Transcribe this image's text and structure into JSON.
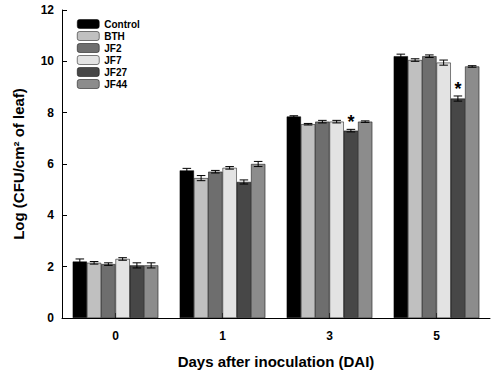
{
  "chart_data": {
    "type": "bar",
    "x_label": "Days after inoculation (DAI)",
    "y_label": "Log (CFU/cm² of leaf)",
    "categories": [
      "0",
      "1",
      "3",
      "5"
    ],
    "ylim": [
      0,
      12
    ],
    "yticks": [
      0,
      2,
      4,
      6,
      8,
      10,
      12
    ],
    "legend": "upper left",
    "series": [
      {
        "name": "Control",
        "color": "#000000",
        "values": [
          2.2,
          5.75,
          7.85,
          10.2
        ],
        "errors": [
          0.1,
          0.08,
          0.03,
          0.08
        ]
      },
      {
        "name": "BTH",
        "color": "#c0c0c0",
        "values": [
          2.15,
          5.45,
          7.55,
          10.05
        ],
        "errors": [
          0.05,
          0.1,
          0.03,
          0.05
        ]
      },
      {
        "name": "JF2",
        "color": "#6e6e6e",
        "values": [
          2.1,
          5.7,
          7.65,
          10.2
        ],
        "errors": [
          0.05,
          0.05,
          0.05,
          0.05
        ]
      },
      {
        "name": "JF7",
        "color": "#e3e3e3",
        "values": [
          2.3,
          5.85,
          7.65,
          9.95
        ],
        "errors": [
          0.05,
          0.05,
          0.05,
          0.1
        ]
      },
      {
        "name": "JF27",
        "color": "#474747",
        "values": [
          2.05,
          5.3,
          7.3,
          8.55
        ],
        "errors": [
          0.1,
          0.08,
          0.05,
          0.1
        ]
      },
      {
        "name": "JF44",
        "color": "#8c8c8c",
        "values": [
          2.05,
          6.0,
          7.65,
          9.8
        ],
        "errors": [
          0.1,
          0.1,
          0.03,
          0.03
        ]
      }
    ],
    "annotations": [
      {
        "text": "*",
        "category": "3",
        "series": "JF27"
      },
      {
        "text": "*",
        "category": "5",
        "series": "JF27"
      }
    ]
  }
}
